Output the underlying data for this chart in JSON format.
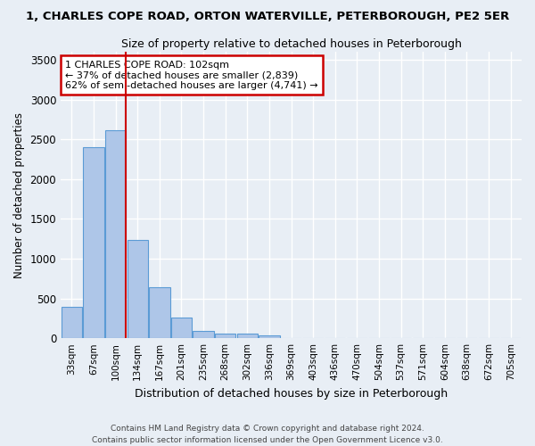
{
  "title_line1": "1, CHARLES COPE ROAD, ORTON WATERVILLE, PETERBOROUGH, PE2 5ER",
  "title_line2": "Size of property relative to detached houses in Peterborough",
  "xlabel": "Distribution of detached houses by size in Peterborough",
  "ylabel": "Number of detached properties",
  "footer_line1": "Contains HM Land Registry data © Crown copyright and database right 2024.",
  "footer_line2": "Contains public sector information licensed under the Open Government Licence v3.0.",
  "categories": [
    "33sqm",
    "67sqm",
    "100sqm",
    "134sqm",
    "167sqm",
    "201sqm",
    "235sqm",
    "268sqm",
    "302sqm",
    "336sqm",
    "369sqm",
    "403sqm",
    "436sqm",
    "470sqm",
    "504sqm",
    "537sqm",
    "571sqm",
    "604sqm",
    "638sqm",
    "672sqm",
    "705sqm"
  ],
  "values": [
    390,
    2400,
    2610,
    1230,
    640,
    255,
    95,
    60,
    55,
    35,
    0,
    0,
    0,
    0,
    0,
    0,
    0,
    0,
    0,
    0,
    0
  ],
  "bar_color": "#aec6e8",
  "bar_edge_color": "#5b9bd5",
  "property_line_x": 2.45,
  "annotation_text_line1": "1 CHARLES COPE ROAD: 102sqm",
  "annotation_text_line2": "← 37% of detached houses are smaller (2,839)",
  "annotation_text_line3": "62% of semi-detached houses are larger (4,741) →",
  "annotation_box_color": "#ffffff",
  "annotation_box_edge_color": "#cc0000",
  "vline_color": "#cc0000",
  "ylim": [
    0,
    3600
  ],
  "yticks": [
    0,
    500,
    1000,
    1500,
    2000,
    2500,
    3000,
    3500
  ],
  "background_color": "#e8eef5",
  "grid_color": "#ffffff",
  "figsize": [
    6.0,
    5.0
  ],
  "dpi": 100
}
